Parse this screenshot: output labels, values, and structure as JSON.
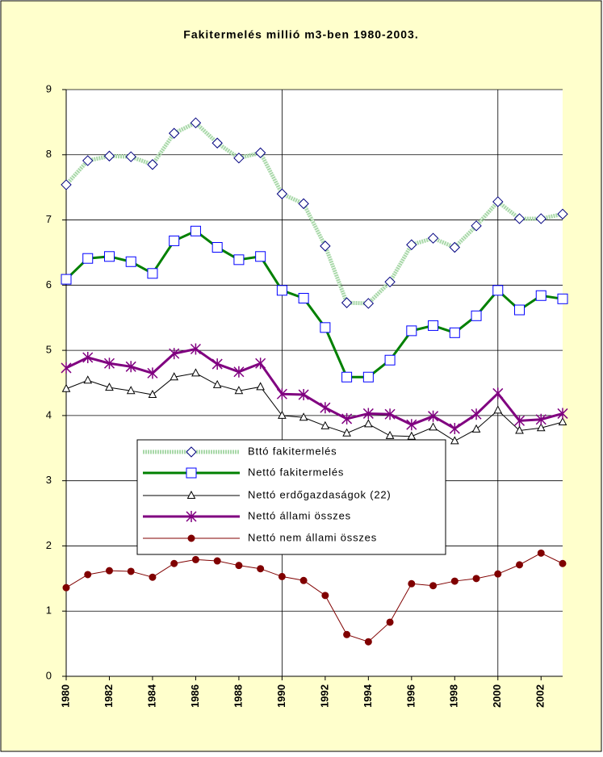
{
  "chart_data": {
    "type": "line",
    "title": "Fakitermelés millió m3-ben 1980-2003.",
    "x": [
      1980,
      1981,
      1982,
      1983,
      1984,
      1985,
      1986,
      1987,
      1988,
      1989,
      1990,
      1991,
      1992,
      1993,
      1994,
      1995,
      1996,
      1997,
      1998,
      1999,
      2000,
      2001,
      2002,
      2003
    ],
    "xlim": [
      1980,
      2003
    ],
    "xticks": [
      1980,
      1982,
      1984,
      1986,
      1988,
      1990,
      1992,
      1994,
      1996,
      1998,
      2000,
      2002
    ],
    "ylim": [
      0,
      9
    ],
    "yticks": [
      0,
      1,
      2,
      3,
      4,
      5,
      6,
      7,
      8,
      9
    ],
    "grid": true,
    "series": [
      {
        "name": "Bttó fakitermelés",
        "color": "#a8d8a8",
        "marker": "diamond",
        "marker_color": "#000080",
        "values": [
          7.54,
          7.91,
          7.98,
          7.97,
          7.85,
          8.33,
          8.49,
          8.18,
          7.95,
          8.03,
          7.4,
          7.25,
          6.6,
          5.73,
          5.72,
          6.05,
          6.62,
          6.72,
          6.58,
          6.91,
          7.28,
          7.02,
          7.02,
          7.09
        ]
      },
      {
        "name": "Nettó fakitermelés",
        "color": "#008000",
        "marker": "square",
        "marker_color": "#0000ff",
        "values": [
          6.09,
          6.41,
          6.44,
          6.36,
          6.18,
          6.68,
          6.83,
          6.58,
          6.39,
          6.44,
          5.92,
          5.8,
          5.35,
          4.59,
          4.59,
          4.85,
          5.3,
          5.38,
          5.27,
          5.53,
          5.92,
          5.62,
          5.84,
          5.79
        ]
      },
      {
        "name": "Nettó erdőgazdaságok (22)",
        "color": "#000000",
        "marker": "triangle",
        "marker_color": "#000000",
        "values": [
          4.41,
          4.54,
          4.43,
          4.38,
          4.32,
          4.59,
          4.65,
          4.47,
          4.38,
          4.44,
          4.0,
          3.97,
          3.84,
          3.73,
          3.87,
          3.69,
          3.68,
          3.82,
          3.61,
          3.79,
          4.08,
          3.77,
          3.81,
          3.9
        ]
      },
      {
        "name": "Nettó állami összes",
        "color": "#800080",
        "marker": "star",
        "marker_color": "#800080",
        "values": [
          4.73,
          4.89,
          4.8,
          4.75,
          4.65,
          4.95,
          5.02,
          4.79,
          4.67,
          4.8,
          4.33,
          4.32,
          4.12,
          3.95,
          4.03,
          4.02,
          3.86,
          3.99,
          3.8,
          4.02,
          4.34,
          3.92,
          3.94,
          4.03
        ]
      },
      {
        "name": "Nettó nem állami összes",
        "color": "#800000",
        "marker": "circle",
        "marker_color": "#800000",
        "values": [
          1.36,
          1.56,
          1.62,
          1.61,
          1.52,
          1.73,
          1.79,
          1.77,
          1.7,
          1.65,
          1.53,
          1.47,
          1.24,
          0.64,
          0.53,
          0.83,
          1.42,
          1.39,
          1.46,
          1.5,
          1.57,
          1.71,
          1.89,
          1.73
        ]
      }
    ]
  }
}
